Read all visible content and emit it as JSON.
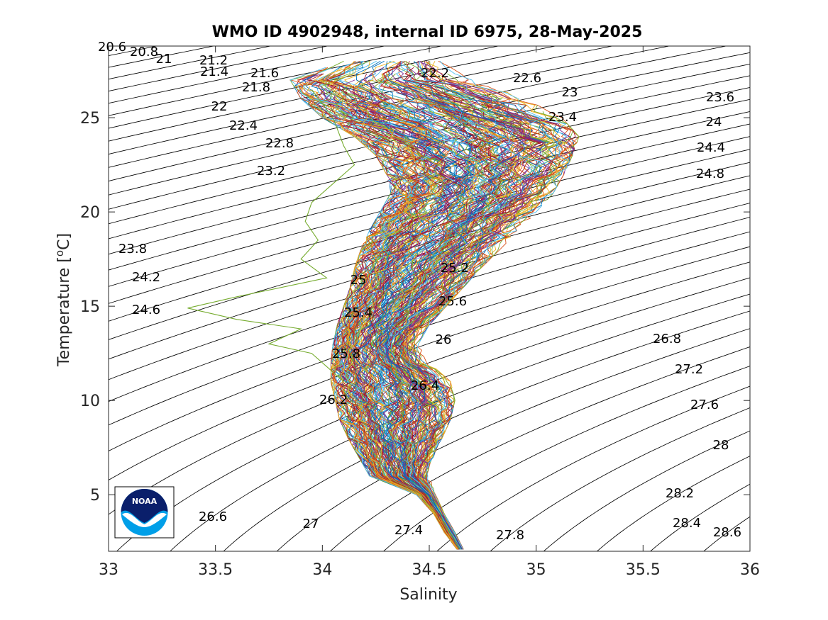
{
  "chart_data": {
    "type": "scatter",
    "title": "WMO ID 4902948, internal ID 6975, 28-May-2025",
    "xlabel": "Salinity",
    "ylabel": "Temperature [",
    "ylabel_sup": "o",
    "ylabel_tail": "C]",
    "xlim": [
      33,
      36
    ],
    "ylim": [
      2,
      28.8
    ],
    "x_ticks": [
      "33",
      "33.5",
      "34",
      "34.5",
      "35",
      "35.5",
      "36"
    ],
    "y_ticks": [
      "5",
      "10",
      "15",
      "20",
      "25"
    ],
    "grid": false,
    "density_contours": [
      "20.6",
      "20.8",
      "21",
      "21.2",
      "21.4",
      "21.6",
      "21.8",
      "22",
      "22.2",
      "22.4",
      "22.6",
      "22.8",
      "23",
      "23.2",
      "23.4",
      "23.6",
      "23.8",
      "24",
      "24.2",
      "24.4",
      "24.6",
      "24.8",
      "25",
      "25.2",
      "25.4",
      "25.6",
      "25.8",
      "26",
      "26.2",
      "26.4",
      "26.6",
      "26.8",
      "27",
      "27.2",
      "27.4",
      "27.6",
      "27.8",
      "28",
      "28.2",
      "28.4",
      "28.6"
    ],
    "profile_envelope": [
      {
        "t": 2.1,
        "s_min": 34.63,
        "s_max": 34.66
      },
      {
        "t": 3,
        "s_min": 34.57,
        "s_max": 34.62
      },
      {
        "t": 4,
        "s_min": 34.52,
        "s_max": 34.57
      },
      {
        "t": 5,
        "s_min": 34.44,
        "s_max": 34.53
      },
      {
        "t": 6,
        "s_min": 34.22,
        "s_max": 34.5
      },
      {
        "t": 7,
        "s_min": 34.17,
        "s_max": 34.52
      },
      {
        "t": 8,
        "s_min": 34.12,
        "s_max": 34.56
      },
      {
        "t": 9,
        "s_min": 34.08,
        "s_max": 34.6
      },
      {
        "t": 10,
        "s_min": 34.06,
        "s_max": 34.62
      },
      {
        "t": 11,
        "s_min": 34.04,
        "s_max": 34.6
      },
      {
        "t": 12,
        "s_min": 34.04,
        "s_max": 34.5
      },
      {
        "t": 13,
        "s_min": 34.05,
        "s_max": 34.45
      },
      {
        "t": 14,
        "s_min": 34.07,
        "s_max": 34.5
      },
      {
        "t": 15,
        "s_min": 34.1,
        "s_max": 34.58
      },
      {
        "t": 16,
        "s_min": 34.13,
        "s_max": 34.66
      },
      {
        "t": 17,
        "s_min": 34.15,
        "s_max": 34.74
      },
      {
        "t": 18,
        "s_min": 34.18,
        "s_max": 34.83
      },
      {
        "t": 19,
        "s_min": 34.22,
        "s_max": 34.92
      },
      {
        "t": 20,
        "s_min": 34.27,
        "s_max": 35.0
      },
      {
        "t": 21,
        "s_min": 34.32,
        "s_max": 35.08
      },
      {
        "t": 22,
        "s_min": 34.3,
        "s_max": 35.13
      },
      {
        "t": 23,
        "s_min": 34.25,
        "s_max": 35.17
      },
      {
        "t": 24,
        "s_min": 34.15,
        "s_max": 35.2
      },
      {
        "t": 25,
        "s_min": 34.0,
        "s_max": 35.12
      },
      {
        "t": 26,
        "s_min": 33.9,
        "s_max": 34.95
      },
      {
        "t": 27,
        "s_min": 33.85,
        "s_max": 34.7
      },
      {
        "t": 28,
        "s_min": 34.1,
        "s_max": 34.55
      }
    ],
    "outlier_profile": [
      {
        "s": 33.95,
        "t": 26.5
      },
      {
        "s": 34.05,
        "t": 25
      },
      {
        "s": 34.1,
        "t": 23.5
      },
      {
        "s": 34.15,
        "t": 22.5
      },
      {
        "s": 34.05,
        "t": 21.5
      },
      {
        "s": 33.95,
        "t": 20.5
      },
      {
        "s": 33.92,
        "t": 19.5
      },
      {
        "s": 33.98,
        "t": 18.5
      },
      {
        "s": 33.9,
        "t": 17.5
      },
      {
        "s": 34.02,
        "t": 16.5
      },
      {
        "s": 33.6,
        "t": 15.5
      },
      {
        "s": 33.37,
        "t": 14.9
      },
      {
        "s": 33.6,
        "t": 14.3
      },
      {
        "s": 33.9,
        "t": 13.8
      },
      {
        "s": 33.75,
        "t": 13.0
      },
      {
        "s": 33.95,
        "t": 12.5
      },
      {
        "s": 34.02,
        "t": 11.8
      },
      {
        "s": 34.1,
        "t": 11.0
      }
    ],
    "logo": {
      "text": "NOAA",
      "navy": "#0a1f6b",
      "blue": "#009fe8"
    }
  }
}
